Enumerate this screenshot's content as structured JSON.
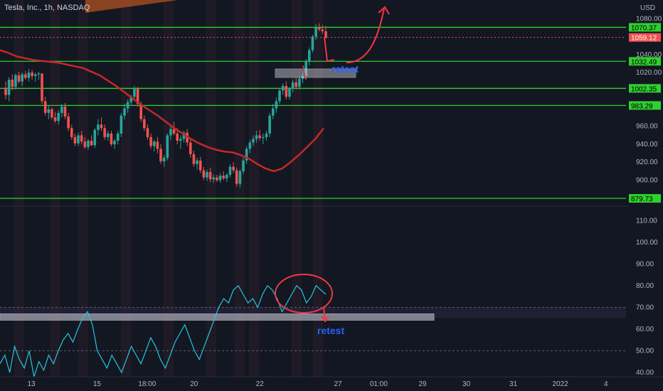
{
  "header": {
    "title": "Tesla, Inc., 1h, NASDAQ",
    "currency": "USD"
  },
  "colors": {
    "background": "#131722",
    "level_line": "#2ed12e",
    "ma_line": "#c62828",
    "candle_up": "#26a69a",
    "candle_down": "#ef5350",
    "rsi_line": "#26c6da",
    "annotation_red": "#f23645",
    "annotation_blue": "#2962ff",
    "session_band": "#2a1f2a"
  },
  "chart_data": [
    {
      "type": "candlestick",
      "ylim": [
        875,
        1085
      ],
      "y_ticks": [
        "880.00",
        "900.00",
        "920.00",
        "940.00",
        "960.00",
        "1020.00",
        "1040.00",
        "1080.00"
      ],
      "levels": [
        {
          "value": 1070.37,
          "label": "1070.37"
        },
        {
          "value": 1032.49,
          "label": "1032.49"
        },
        {
          "value": 1002.35,
          "label": "1002.35"
        },
        {
          "value": 983.29,
          "label": "983.29"
        },
        {
          "value": 879.73,
          "label": "879.73"
        }
      ],
      "current_price": {
        "value": 1059.12,
        "label": "1059.12"
      },
      "annotations": [
        "retest"
      ],
      "ohlc": [
        [
          1003,
          1010,
          990,
          995
        ],
        [
          995,
          1015,
          988,
          1012
        ],
        [
          1012,
          1018,
          1000,
          1004
        ],
        [
          1004,
          1019,
          1001,
          1017
        ],
        [
          1017,
          1021,
          1008,
          1010
        ],
        [
          1010,
          1020,
          1005,
          1018
        ],
        [
          1018,
          1022,
          1012,
          1014
        ],
        [
          1014,
          1024,
          1010,
          1020
        ],
        [
          1020,
          1023,
          1012,
          1016
        ],
        [
          1016,
          1020,
          1010,
          1018
        ],
        [
          1018,
          1021,
          1012,
          1019
        ],
        [
          1019,
          1018,
          985,
          988
        ],
        [
          988,
          993,
          972,
          975
        ],
        [
          975,
          983,
          968,
          979
        ],
        [
          979,
          981,
          968,
          970
        ],
        [
          970,
          976,
          964,
          966
        ],
        [
          966,
          978,
          962,
          975
        ],
        [
          975,
          985,
          970,
          982
        ],
        [
          982,
          986,
          968,
          971
        ],
        [
          971,
          975,
          955,
          958
        ],
        [
          958,
          962,
          945,
          948
        ],
        [
          948,
          952,
          938,
          941
        ],
        [
          941,
          953,
          938,
          950
        ],
        [
          950,
          955,
          940,
          943
        ],
        [
          943,
          948,
          935,
          937
        ],
        [
          937,
          946,
          934,
          944
        ],
        [
          944,
          950,
          938,
          939
        ],
        [
          939,
          958,
          936,
          956
        ],
        [
          956,
          968,
          950,
          962
        ],
        [
          962,
          970,
          955,
          958
        ],
        [
          958,
          962,
          945,
          948
        ],
        [
          948,
          955,
          944,
          952
        ],
        [
          952,
          955,
          938,
          940
        ],
        [
          940,
          946,
          935,
          944
        ],
        [
          944,
          955,
          940,
          952
        ],
        [
          952,
          975,
          948,
          972
        ],
        [
          972,
          985,
          968,
          980
        ],
        [
          980,
          990,
          975,
          987
        ],
        [
          987,
          995,
          984,
          993
        ],
        [
          993,
          1005,
          990,
          1002
        ],
        [
          1002,
          1004,
          982,
          985
        ],
        [
          985,
          988,
          965,
          968
        ],
        [
          968,
          972,
          955,
          958
        ],
        [
          958,
          962,
          945,
          948
        ],
        [
          948,
          952,
          935,
          938
        ],
        [
          938,
          945,
          932,
          943
        ],
        [
          943,
          948,
          930,
          935
        ],
        [
          935,
          940,
          918,
          921
        ],
        [
          921,
          928,
          915,
          925
        ],
        [
          925,
          952,
          922,
          950
        ],
        [
          950,
          960,
          945,
          957
        ],
        [
          957,
          965,
          950,
          952
        ],
        [
          952,
          958,
          940,
          944
        ],
        [
          944,
          950,
          935,
          946
        ],
        [
          946,
          955,
          942,
          953
        ],
        [
          953,
          957,
          938,
          942
        ],
        [
          942,
          947,
          925,
          929
        ],
        [
          929,
          933,
          915,
          918
        ],
        [
          918,
          925,
          912,
          922
        ],
        [
          922,
          926,
          908,
          911
        ],
        [
          911,
          915,
          900,
          903
        ],
        [
          903,
          912,
          899,
          909
        ],
        [
          909,
          914,
          898,
          901
        ],
        [
          901,
          906,
          897,
          903
        ],
        [
          903,
          906,
          898,
          900
        ],
        [
          900,
          908,
          897,
          905
        ],
        [
          905,
          910,
          900,
          902
        ],
        [
          902,
          908,
          898,
          906
        ],
        [
          906,
          918,
          903,
          915
        ],
        [
          915,
          920,
          908,
          911
        ],
        [
          911,
          914,
          893,
          896
        ],
        [
          896,
          912,
          892,
          910
        ],
        [
          910,
          925,
          907,
          922
        ],
        [
          922,
          938,
          918,
          935
        ],
        [
          935,
          945,
          930,
          942
        ],
        [
          942,
          950,
          938,
          946
        ],
        [
          946,
          955,
          942,
          950
        ],
        [
          950,
          956,
          944,
          947
        ],
        [
          947,
          952,
          940,
          948
        ],
        [
          948,
          955,
          944,
          952
        ],
        [
          952,
          975,
          948,
          972
        ],
        [
          972,
          985,
          968,
          980
        ],
        [
          980,
          992,
          975,
          988
        ],
        [
          988,
          1003,
          985,
          1000
        ],
        [
          1000,
          1008,
          995,
          1005
        ],
        [
          1005,
          1010,
          990,
          993
        ],
        [
          993,
          1004,
          990,
          1002
        ],
        [
          1002,
          1012,
          998,
          1009
        ],
        [
          1009,
          1014,
          1001,
          1004
        ],
        [
          1004,
          1016,
          1001,
          1013
        ],
        [
          1013,
          1020,
          1008,
          1016
        ],
        [
          1016,
          1035,
          1012,
          1032
        ],
        [
          1032,
          1048,
          1028,
          1045
        ],
        [
          1045,
          1062,
          1042,
          1060
        ],
        [
          1060,
          1074,
          1056,
          1070
        ],
        [
          1070,
          1075,
          1066,
          1068
        ],
        [
          1068,
          1073,
          1063,
          1066
        ],
        [
          1066,
          1072,
          1058,
          1059
        ]
      ],
      "moving_average": [
        1045,
        1042,
        1038,
        1036,
        1034,
        1033,
        1032,
        1031,
        1029,
        1027,
        1025,
        1021,
        1017,
        1011,
        1005,
        998,
        991,
        984,
        978,
        972,
        965,
        958,
        952,
        946,
        941,
        937,
        934,
        932,
        931,
        928,
        924,
        918,
        913,
        910,
        913,
        920,
        928,
        937,
        946,
        958
      ]
    },
    {
      "type": "line",
      "ylim": [
        38,
        115
      ],
      "y_ticks": [
        "110.00",
        "100.00",
        "90.00",
        "80.00",
        "70.00",
        "60.00",
        "50.00",
        "40.00"
      ],
      "band": [
        65,
        70
      ],
      "annotations": [
        "retest"
      ],
      "values": [
        44,
        48,
        40,
        52,
        46,
        42,
        50,
        38,
        45,
        41,
        48,
        44,
        50,
        55,
        58,
        54,
        60,
        65,
        68,
        62,
        50,
        46,
        42,
        48,
        44,
        40,
        46,
        52,
        48,
        44,
        50,
        56,
        52,
        46,
        42,
        48,
        54,
        58,
        62,
        56,
        50,
        46,
        52,
        58,
        64,
        70,
        74,
        72,
        78,
        80,
        76,
        72,
        74,
        70,
        76,
        80,
        78,
        74,
        68,
        72,
        76,
        80,
        78,
        72,
        75,
        80,
        78,
        76
      ]
    }
  ],
  "x_axis": {
    "ticks": [
      {
        "label": "13",
        "pos": 0.05
      },
      {
        "label": "15",
        "pos": 0.155
      },
      {
        "label": "18:00",
        "pos": 0.235
      },
      {
        "label": "20",
        "pos": 0.31
      },
      {
        "label": "22",
        "pos": 0.415
      },
      {
        "label": "27",
        "pos": 0.54
      },
      {
        "label": "01:00",
        "pos": 0.605
      },
      {
        "label": "29",
        "pos": 0.675
      },
      {
        "label": "30",
        "pos": 0.745
      },
      {
        "label": "31",
        "pos": 0.82
      },
      {
        "label": "2022",
        "pos": 0.895
      },
      {
        "label": "4",
        "pos": 0.968
      }
    ]
  }
}
